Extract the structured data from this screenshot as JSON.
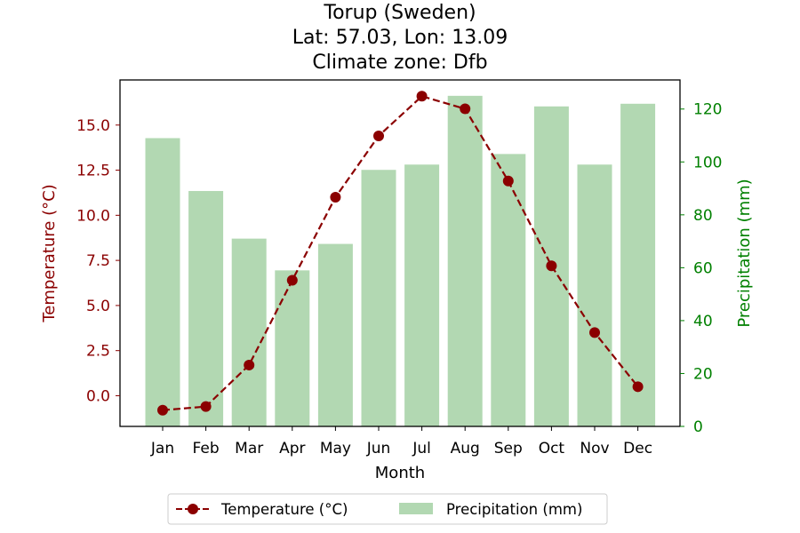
{
  "chart_data": {
    "type": "bar+line",
    "title_lines": [
      "Torup (Sweden)",
      "Lat: 57.03, Lon: 13.09",
      "Climate zone: Dfb"
    ],
    "xlabel": "Month",
    "ylabel_left": "Temperature (°C)",
    "ylabel_right": "Precipitation (mm)",
    "categories": [
      "Jan",
      "Feb",
      "Mar",
      "Apr",
      "May",
      "Jun",
      "Jul",
      "Aug",
      "Sep",
      "Oct",
      "Nov",
      "Dec"
    ],
    "temperature": {
      "name": "Temperature (°C)",
      "values": [
        -0.8,
        -0.6,
        1.7,
        6.4,
        11.0,
        14.4,
        16.6,
        15.9,
        11.9,
        7.2,
        3.5,
        0.5
      ],
      "color": "#8b0000",
      "ylim": [
        -1.7,
        17.5
      ],
      "ticks": [
        0.0,
        2.5,
        5.0,
        7.5,
        10.0,
        12.5,
        15.0
      ],
      "tick_labels": [
        "0.0",
        "2.5",
        "5.0",
        "7.5",
        "10.0",
        "12.5",
        "15.0"
      ]
    },
    "precipitation": {
      "name": "Precipitation (mm)",
      "values": [
        109,
        89,
        71,
        59,
        69,
        97,
        99,
        125,
        103,
        121,
        99,
        122
      ],
      "color": "#b2d8b2",
      "ylim": [
        0,
        131
      ],
      "ticks": [
        0,
        20,
        40,
        60,
        80,
        100,
        120
      ],
      "tick_labels": [
        "0",
        "20",
        "40",
        "60",
        "80",
        "100",
        "120"
      ],
      "axis_color": "#008000"
    },
    "legend": {
      "placement": "bottom-center",
      "entries": [
        "Temperature (°C)",
        "Precipitation (mm)"
      ]
    }
  }
}
